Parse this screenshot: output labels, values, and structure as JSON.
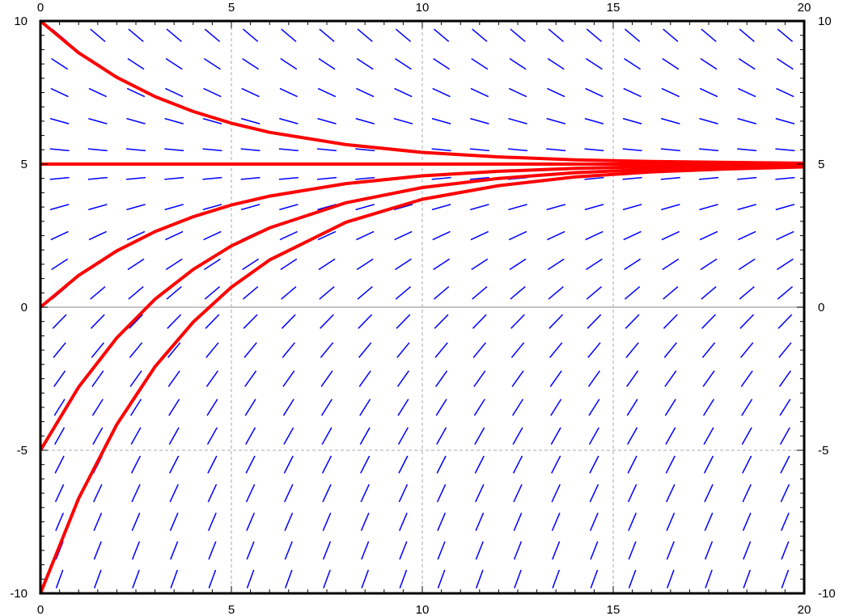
{
  "chart_data": {
    "type": "line",
    "title": "",
    "xlabel": "",
    "ylabel": "",
    "xlim": [
      0,
      20
    ],
    "ylim": [
      -10,
      10
    ],
    "x_ticks": [
      0,
      5,
      10,
      15,
      20
    ],
    "y_ticks": [
      -10,
      -5,
      0,
      5,
      10
    ],
    "x_tick_labels": [
      "0",
      "5",
      "10",
      "15",
      "20"
    ],
    "y_tick_labels": [
      "-10",
      "-5",
      "0",
      "5",
      "10"
    ],
    "grid": true,
    "slope_field": {
      "description": "direction field for dy/dx = (5 - y) / 4",
      "x_samples": [
        0.5,
        1.5,
        2.5,
        3.5,
        4.5,
        5.5,
        6.5,
        7.5,
        8.5,
        9.5,
        10.5,
        11.5,
        12.5,
        13.5,
        14.5,
        15.5,
        16.5,
        17.5,
        18.5,
        19.5
      ],
      "y_samples": [
        9.5,
        8.5,
        7.5,
        6.5,
        5.5,
        4.5,
        3.5,
        2.5,
        1.5,
        0.5,
        -0.5,
        -1.5,
        -2.5,
        -3.5,
        -4.5,
        -5.5,
        -6.5,
        -7.5,
        -8.5,
        -9.5
      ],
      "color": "#0000ff"
    },
    "curves_color": "#ff0000",
    "series": [
      {
        "x": [
          0,
          1,
          2,
          3,
          4,
          5,
          6,
          8,
          10,
          12,
          14,
          16,
          18,
          20
        ],
        "y": [
          10,
          8.89,
          8.03,
          7.36,
          6.84,
          6.43,
          6.11,
          5.68,
          5.41,
          5.25,
          5.15,
          5.09,
          5.06,
          5.03
        ]
      },
      {
        "x": [
          0,
          20
        ],
        "y": [
          5,
          5
        ]
      },
      {
        "x": [
          0,
          1,
          2,
          3,
          4,
          5,
          6,
          8,
          10,
          12,
          14,
          16,
          18,
          20
        ],
        "y": [
          0,
          1.11,
          1.97,
          2.64,
          3.16,
          3.57,
          3.88,
          4.32,
          4.59,
          4.75,
          4.85,
          4.91,
          4.94,
          4.97
        ]
      },
      {
        "x": [
          0,
          1,
          2,
          3,
          4,
          5,
          6,
          8,
          10,
          12,
          14,
          16,
          18,
          20
        ],
        "y": [
          -5,
          -2.79,
          -1.07,
          0.28,
          1.32,
          2.14,
          2.77,
          3.65,
          4.18,
          4.5,
          4.7,
          4.82,
          4.89,
          4.93
        ]
      },
      {
        "x": [
          0,
          1,
          2,
          3,
          4,
          5,
          6,
          8,
          10,
          12,
          14,
          16,
          18,
          20
        ],
        "y": [
          -10,
          -6.68,
          -4.1,
          -2.08,
          -0.52,
          0.7,
          1.65,
          2.97,
          3.77,
          4.25,
          4.55,
          4.73,
          4.83,
          4.9
        ]
      }
    ]
  }
}
